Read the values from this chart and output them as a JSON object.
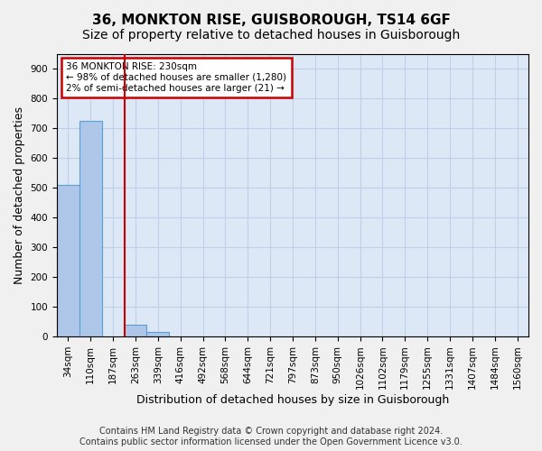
{
  "title1": "36, MONKTON RISE, GUISBOROUGH, TS14 6GF",
  "title2": "Size of property relative to detached houses in Guisborough",
  "xlabel": "Distribution of detached houses by size in Guisborough",
  "ylabel": "Number of detached properties",
  "footer1": "Contains HM Land Registry data © Crown copyright and database right 2024.",
  "footer2": "Contains public sector information licensed under the Open Government Licence v3.0.",
  "bin_labels": [
    "34sqm",
    "110sqm",
    "187sqm",
    "263sqm",
    "339sqm",
    "416sqm",
    "492sqm",
    "568sqm",
    "644sqm",
    "721sqm",
    "797sqm",
    "873sqm",
    "950sqm",
    "1026sqm",
    "1102sqm",
    "1179sqm",
    "1255sqm",
    "1331sqm",
    "1407sqm",
    "1484sqm",
    "1560sqm"
  ],
  "bar_values": [
    510,
    725,
    0,
    40,
    15,
    0,
    0,
    0,
    0,
    0,
    0,
    0,
    0,
    0,
    0,
    0,
    0,
    0,
    0,
    0,
    0
  ],
  "bar_color": "#aec6e8",
  "bar_edge_color": "#5a9fd4",
  "property_line_x": 2.52,
  "property_line_color": "#cc0000",
  "ylim": [
    0,
    950
  ],
  "yticks": [
    0,
    100,
    200,
    300,
    400,
    500,
    600,
    700,
    800,
    900
  ],
  "annotation_text": "36 MONKTON RISE: 230sqm\n← 98% of detached houses are smaller (1,280)\n2% of semi-detached houses are larger (21) →",
  "annotation_box_color": "#cc0000",
  "grid_color": "#c0d0e8",
  "bg_color": "#dce8f5",
  "fig_bg_color": "#f0f0f0",
  "title_fontsize": 11,
  "subtitle_fontsize": 10,
  "tick_fontsize": 7.5,
  "label_fontsize": 9,
  "footer_fontsize": 7
}
